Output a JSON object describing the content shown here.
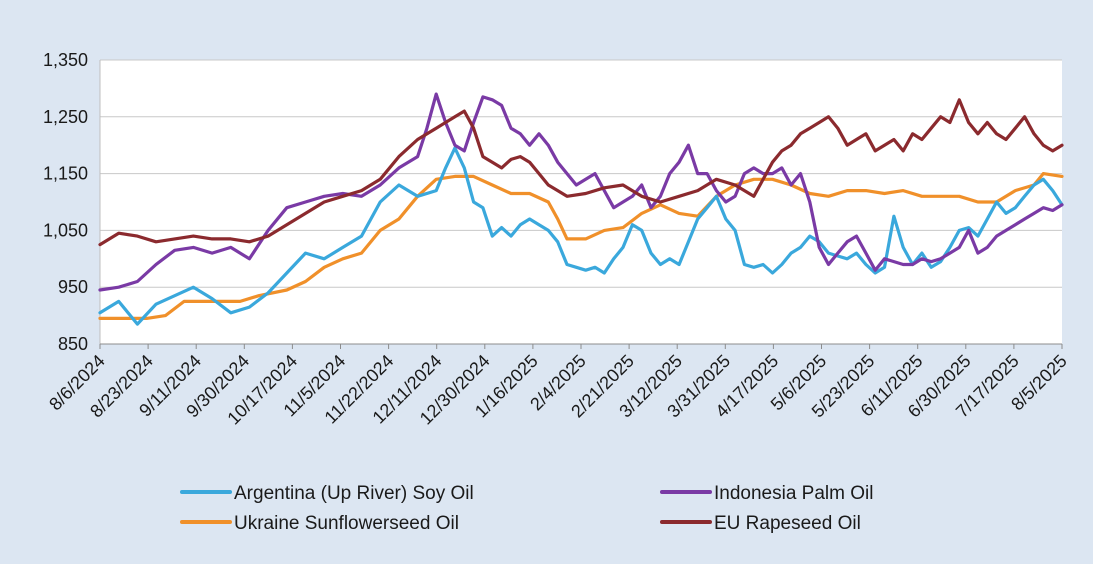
{
  "chart_data": {
    "type": "line",
    "title": "",
    "xlabel": "",
    "ylabel": "",
    "ylim": [
      850,
      1350
    ],
    "yticks": [
      850,
      950,
      1050,
      1150,
      1250,
      1350
    ],
    "ytick_labels": [
      "850",
      "950",
      "1,050",
      "1,150",
      "1,250",
      "1,350"
    ],
    "x_start": "8/6/2024",
    "x_end": "8/5/2025",
    "xtick_labels": [
      "8/6/2024",
      "8/23/2024",
      "9/11/2024",
      "9/30/2024",
      "10/17/2024",
      "11/5/2024",
      "11/22/2024",
      "12/11/2024",
      "12/30/2024",
      "1/16/2025",
      "2/4/2025",
      "2/21/2025",
      "3/12/2025",
      "3/31/2025",
      "4/17/2025",
      "5/6/2025",
      "5/23/2025",
      "6/11/2025",
      "6/30/2025",
      "7/17/2025",
      "8/5/2025"
    ],
    "grid": true,
    "legend_position": "bottom",
    "series": [
      {
        "name": "Argentina (Up River) Soy Oil",
        "color": "#3aa8dc",
        "points": [
          [
            0,
            905
          ],
          [
            4,
            925
          ],
          [
            8,
            885
          ],
          [
            12,
            920
          ],
          [
            16,
            935
          ],
          [
            20,
            950
          ],
          [
            24,
            930
          ],
          [
            28,
            905
          ],
          [
            32,
            915
          ],
          [
            36,
            940
          ],
          [
            40,
            975
          ],
          [
            44,
            1010
          ],
          [
            48,
            1000
          ],
          [
            52,
            1020
          ],
          [
            56,
            1040
          ],
          [
            60,
            1100
          ],
          [
            64,
            1130
          ],
          [
            68,
            1110
          ],
          [
            72,
            1120
          ],
          [
            74,
            1160
          ],
          [
            76,
            1195
          ],
          [
            78,
            1160
          ],
          [
            80,
            1100
          ],
          [
            82,
            1090
          ],
          [
            84,
            1040
          ],
          [
            86,
            1055
          ],
          [
            88,
            1040
          ],
          [
            90,
            1060
          ],
          [
            92,
            1070
          ],
          [
            94,
            1060
          ],
          [
            96,
            1050
          ],
          [
            98,
            1030
          ],
          [
            100,
            990
          ],
          [
            102,
            985
          ],
          [
            104,
            980
          ],
          [
            106,
            985
          ],
          [
            108,
            975
          ],
          [
            110,
            1000
          ],
          [
            112,
            1020
          ],
          [
            114,
            1060
          ],
          [
            116,
            1050
          ],
          [
            118,
            1010
          ],
          [
            120,
            990
          ],
          [
            122,
            1000
          ],
          [
            124,
            990
          ],
          [
            126,
            1030
          ],
          [
            128,
            1070
          ],
          [
            130,
            1090
          ],
          [
            132,
            1110
          ],
          [
            134,
            1070
          ],
          [
            136,
            1050
          ],
          [
            138,
            990
          ],
          [
            140,
            985
          ],
          [
            142,
            990
          ],
          [
            144,
            975
          ],
          [
            146,
            990
          ],
          [
            148,
            1010
          ],
          [
            150,
            1020
          ],
          [
            152,
            1040
          ],
          [
            154,
            1030
          ],
          [
            156,
            1010
          ],
          [
            158,
            1005
          ],
          [
            160,
            1000
          ],
          [
            162,
            1010
          ],
          [
            164,
            990
          ],
          [
            166,
            975
          ],
          [
            168,
            985
          ],
          [
            170,
            1075
          ],
          [
            172,
            1020
          ],
          [
            174,
            990
          ],
          [
            176,
            1010
          ],
          [
            178,
            985
          ],
          [
            180,
            995
          ],
          [
            182,
            1020
          ],
          [
            184,
            1050
          ],
          [
            186,
            1055
          ],
          [
            188,
            1040
          ],
          [
            190,
            1070
          ],
          [
            192,
            1100
          ],
          [
            194,
            1080
          ],
          [
            196,
            1090
          ],
          [
            198,
            1110
          ],
          [
            200,
            1130
          ],
          [
            202,
            1140
          ],
          [
            204,
            1120
          ],
          [
            206,
            1095
          ]
        ]
      },
      {
        "name": "Indonesia Palm Oil",
        "color": "#7a3aa5",
        "points": [
          [
            0,
            945
          ],
          [
            4,
            950
          ],
          [
            8,
            960
          ],
          [
            12,
            990
          ],
          [
            16,
            1015
          ],
          [
            20,
            1020
          ],
          [
            24,
            1010
          ],
          [
            28,
            1020
          ],
          [
            32,
            1000
          ],
          [
            36,
            1050
          ],
          [
            40,
            1090
          ],
          [
            44,
            1100
          ],
          [
            48,
            1110
          ],
          [
            52,
            1115
          ],
          [
            56,
            1110
          ],
          [
            60,
            1130
          ],
          [
            64,
            1160
          ],
          [
            68,
            1180
          ],
          [
            70,
            1230
          ],
          [
            72,
            1290
          ],
          [
            74,
            1240
          ],
          [
            76,
            1200
          ],
          [
            78,
            1190
          ],
          [
            80,
            1240
          ],
          [
            82,
            1285
          ],
          [
            84,
            1280
          ],
          [
            86,
            1270
          ],
          [
            88,
            1230
          ],
          [
            90,
            1220
          ],
          [
            92,
            1200
          ],
          [
            94,
            1220
          ],
          [
            96,
            1200
          ],
          [
            98,
            1170
          ],
          [
            100,
            1150
          ],
          [
            102,
            1130
          ],
          [
            104,
            1140
          ],
          [
            106,
            1150
          ],
          [
            108,
            1120
          ],
          [
            110,
            1090
          ],
          [
            112,
            1100
          ],
          [
            114,
            1110
          ],
          [
            116,
            1130
          ],
          [
            118,
            1090
          ],
          [
            120,
            1110
          ],
          [
            122,
            1150
          ],
          [
            124,
            1170
          ],
          [
            126,
            1200
          ],
          [
            128,
            1150
          ],
          [
            130,
            1150
          ],
          [
            132,
            1120
          ],
          [
            134,
            1100
          ],
          [
            136,
            1110
          ],
          [
            138,
            1150
          ],
          [
            140,
            1160
          ],
          [
            142,
            1150
          ],
          [
            144,
            1150
          ],
          [
            146,
            1160
          ],
          [
            148,
            1130
          ],
          [
            150,
            1150
          ],
          [
            152,
            1100
          ],
          [
            154,
            1020
          ],
          [
            156,
            990
          ],
          [
            158,
            1010
          ],
          [
            160,
            1030
          ],
          [
            162,
            1040
          ],
          [
            164,
            1010
          ],
          [
            166,
            980
          ],
          [
            168,
            1000
          ],
          [
            170,
            995
          ],
          [
            172,
            990
          ],
          [
            174,
            990
          ],
          [
            176,
            1000
          ],
          [
            178,
            995
          ],
          [
            180,
            1000
          ],
          [
            182,
            1010
          ],
          [
            184,
            1020
          ],
          [
            186,
            1050
          ],
          [
            188,
            1010
          ],
          [
            190,
            1020
          ],
          [
            192,
            1040
          ],
          [
            194,
            1050
          ],
          [
            196,
            1060
          ],
          [
            198,
            1070
          ],
          [
            200,
            1080
          ],
          [
            202,
            1090
          ],
          [
            204,
            1085
          ],
          [
            206,
            1095
          ]
        ]
      },
      {
        "name": "Ukraine Sunflowerseed Oil",
        "color": "#f0902a",
        "points": [
          [
            0,
            895
          ],
          [
            10,
            895
          ],
          [
            14,
            900
          ],
          [
            18,
            925
          ],
          [
            24,
            925
          ],
          [
            30,
            925
          ],
          [
            34,
            935
          ],
          [
            40,
            945
          ],
          [
            44,
            960
          ],
          [
            48,
            985
          ],
          [
            52,
            1000
          ],
          [
            56,
            1010
          ],
          [
            60,
            1050
          ],
          [
            64,
            1070
          ],
          [
            68,
            1110
          ],
          [
            72,
            1140
          ],
          [
            76,
            1145
          ],
          [
            80,
            1145
          ],
          [
            84,
            1130
          ],
          [
            88,
            1115
          ],
          [
            92,
            1115
          ],
          [
            96,
            1100
          ],
          [
            98,
            1070
          ],
          [
            100,
            1035
          ],
          [
            104,
            1035
          ],
          [
            108,
            1050
          ],
          [
            112,
            1055
          ],
          [
            116,
            1080
          ],
          [
            120,
            1095
          ],
          [
            124,
            1080
          ],
          [
            128,
            1075
          ],
          [
            132,
            1110
          ],
          [
            136,
            1130
          ],
          [
            140,
            1140
          ],
          [
            144,
            1140
          ],
          [
            148,
            1130
          ],
          [
            152,
            1115
          ],
          [
            156,
            1110
          ],
          [
            160,
            1120
          ],
          [
            164,
            1120
          ],
          [
            168,
            1115
          ],
          [
            172,
            1120
          ],
          [
            176,
            1110
          ],
          [
            180,
            1110
          ],
          [
            184,
            1110
          ],
          [
            188,
            1100
          ],
          [
            192,
            1100
          ],
          [
            196,
            1120
          ],
          [
            200,
            1130
          ],
          [
            202,
            1150
          ],
          [
            206,
            1145
          ]
        ]
      },
      {
        "name": "EU Rapeseed Oil",
        "color": "#8b2a2e",
        "points": [
          [
            0,
            1025
          ],
          [
            4,
            1045
          ],
          [
            8,
            1040
          ],
          [
            12,
            1030
          ],
          [
            16,
            1035
          ],
          [
            20,
            1040
          ],
          [
            24,
            1035
          ],
          [
            28,
            1035
          ],
          [
            32,
            1030
          ],
          [
            36,
            1040
          ],
          [
            40,
            1060
          ],
          [
            44,
            1080
          ],
          [
            48,
            1100
          ],
          [
            52,
            1110
          ],
          [
            56,
            1120
          ],
          [
            60,
            1140
          ],
          [
            64,
            1180
          ],
          [
            68,
            1210
          ],
          [
            72,
            1230
          ],
          [
            76,
            1250
          ],
          [
            78,
            1260
          ],
          [
            80,
            1230
          ],
          [
            82,
            1180
          ],
          [
            84,
            1170
          ],
          [
            86,
            1160
          ],
          [
            88,
            1175
          ],
          [
            90,
            1180
          ],
          [
            92,
            1170
          ],
          [
            94,
            1150
          ],
          [
            96,
            1130
          ],
          [
            98,
            1120
          ],
          [
            100,
            1110
          ],
          [
            104,
            1115
          ],
          [
            108,
            1125
          ],
          [
            112,
            1130
          ],
          [
            116,
            1110
          ],
          [
            120,
            1100
          ],
          [
            124,
            1110
          ],
          [
            128,
            1120
          ],
          [
            132,
            1140
          ],
          [
            136,
            1130
          ],
          [
            140,
            1110
          ],
          [
            144,
            1170
          ],
          [
            146,
            1190
          ],
          [
            148,
            1200
          ],
          [
            150,
            1220
          ],
          [
            152,
            1230
          ],
          [
            154,
            1240
          ],
          [
            156,
            1250
          ],
          [
            158,
            1230
          ],
          [
            160,
            1200
          ],
          [
            162,
            1210
          ],
          [
            164,
            1220
          ],
          [
            166,
            1190
          ],
          [
            168,
            1200
          ],
          [
            170,
            1210
          ],
          [
            172,
            1190
          ],
          [
            174,
            1220
          ],
          [
            176,
            1210
          ],
          [
            178,
            1230
          ],
          [
            180,
            1250
          ],
          [
            182,
            1240
          ],
          [
            184,
            1280
          ],
          [
            186,
            1240
          ],
          [
            188,
            1220
          ],
          [
            190,
            1240
          ],
          [
            192,
            1220
          ],
          [
            194,
            1210
          ],
          [
            196,
            1230
          ],
          [
            198,
            1250
          ],
          [
            200,
            1220
          ],
          [
            202,
            1200
          ],
          [
            204,
            1190
          ],
          [
            206,
            1200
          ]
        ]
      }
    ]
  }
}
